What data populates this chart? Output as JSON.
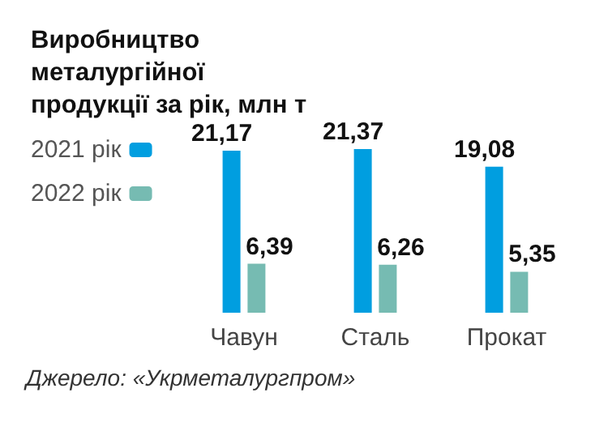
{
  "chart_data": {
    "type": "bar",
    "title": "Виробництво металургійної продукції за рік, млн т",
    "categories": [
      "Чавун",
      "Сталь",
      "Прокат"
    ],
    "series": [
      {
        "name": "2021 рік",
        "color": "#009ee0",
        "values": [
          21.17,
          21.37,
          19.08
        ],
        "value_labels": [
          "21,17",
          "21,37",
          "19,08"
        ]
      },
      {
        "name": "2022 рік",
        "color": "#76bbb2",
        "values": [
          6.39,
          6.26,
          5.35
        ],
        "value_labels": [
          "6,39",
          "6,26",
          "5,35"
        ]
      }
    ],
    "legend": "top left",
    "grid": false,
    "annotations": [
      "Джерело: «Укрметалургпром»"
    ]
  }
}
